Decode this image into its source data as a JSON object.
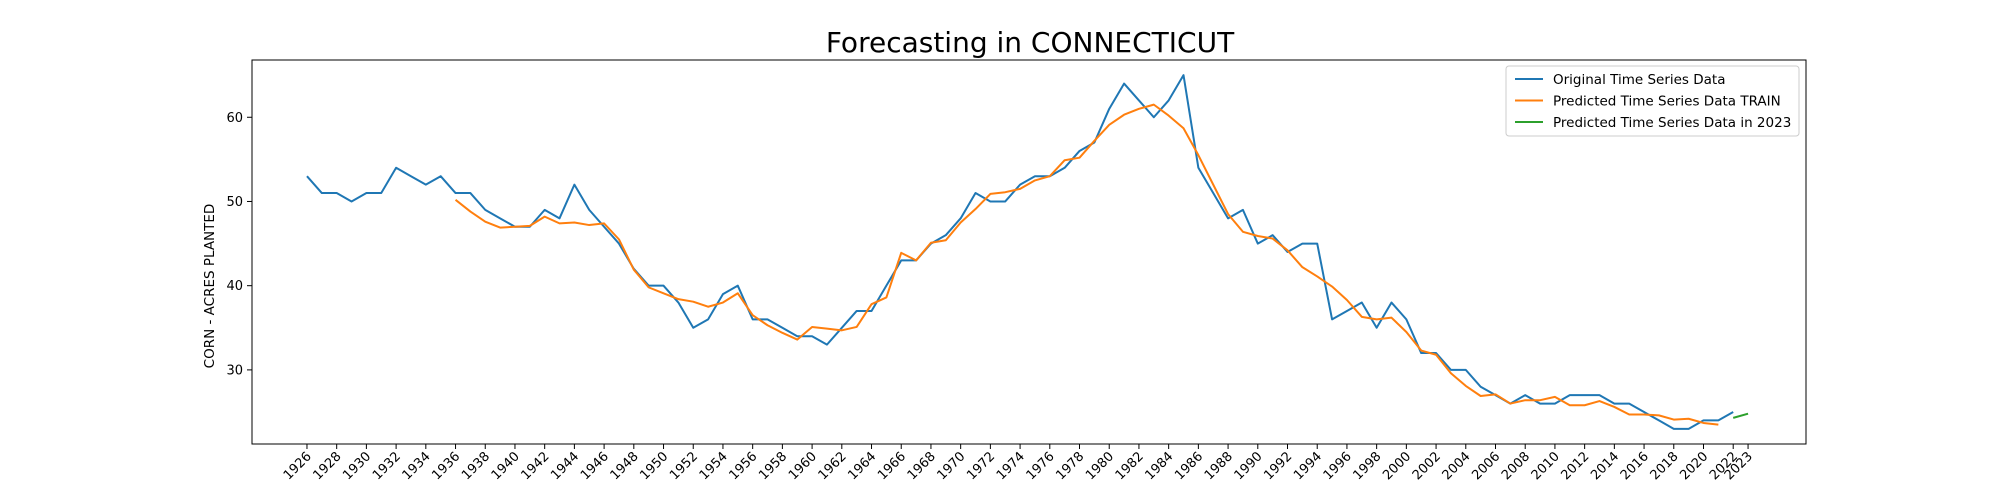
{
  "chart_data": {
    "type": "line",
    "title": "Forecasting in CONNECTICUT",
    "xlabel": "",
    "ylabel": "CORN - ACRES PLANTED",
    "xlim": [
      1922.3,
      2026.9
    ],
    "ylim": [
      21.2,
      66.8
    ],
    "y_ticks": [
      30,
      40,
      50,
      60
    ],
    "x_ticks": [
      1926,
      1928,
      1930,
      1932,
      1934,
      1936,
      1938,
      1940,
      1942,
      1944,
      1946,
      1948,
      1950,
      1952,
      1954,
      1956,
      1958,
      1960,
      1962,
      1964,
      1966,
      1968,
      1970,
      1972,
      1974,
      1976,
      1978,
      1980,
      1982,
      1984,
      1986,
      1988,
      1990,
      1992,
      1994,
      1996,
      1998,
      2000,
      2002,
      2004,
      2006,
      2008,
      2010,
      2012,
      2014,
      2016,
      2018,
      2020,
      2022,
      2023
    ],
    "grid": false,
    "legend_position": "upper right",
    "series": [
      {
        "name": "Original Time Series Data",
        "color": "#1f77b4",
        "x": [
          1926,
          1927,
          1928,
          1929,
          1930,
          1931,
          1932,
          1933,
          1934,
          1935,
          1936,
          1937,
          1938,
          1939,
          1940,
          1941,
          1942,
          1943,
          1944,
          1945,
          1946,
          1947,
          1948,
          1949,
          1950,
          1951,
          1952,
          1953,
          1954,
          1955,
          1956,
          1957,
          1958,
          1959,
          1960,
          1961,
          1962,
          1963,
          1964,
          1965,
          1966,
          1967,
          1968,
          1969,
          1970,
          1971,
          1972,
          1973,
          1974,
          1975,
          1976,
          1977,
          1978,
          1979,
          1980,
          1981,
          1982,
          1983,
          1984,
          1985,
          1986,
          1987,
          1988,
          1989,
          1990,
          1991,
          1992,
          1993,
          1994,
          1995,
          1996,
          1997,
          1998,
          1999,
          2000,
          2001,
          2002,
          2003,
          2004,
          2005,
          2006,
          2007,
          2008,
          2009,
          2010,
          2011,
          2012,
          2013,
          2014,
          2015,
          2016,
          2017,
          2018,
          2019,
          2020,
          2021,
          2022
        ],
        "y": [
          53,
          51,
          51,
          50,
          51,
          51,
          54,
          53,
          52,
          53,
          51,
          51,
          49,
          48,
          47,
          47,
          49,
          48,
          52,
          49,
          47,
          45,
          42,
          40,
          40,
          38,
          35,
          36,
          39,
          40,
          36,
          36,
          35,
          34,
          34,
          33,
          35,
          37,
          37,
          40,
          43,
          43,
          45,
          46,
          48,
          51,
          50,
          50,
          52,
          53,
          53,
          54,
          56,
          57,
          61,
          64,
          62,
          60,
          62,
          65,
          54,
          51,
          48,
          49,
          45,
          46,
          44,
          45,
          45,
          36,
          37,
          38,
          35,
          38,
          36,
          32,
          32,
          30,
          30,
          28,
          27,
          26,
          27,
          26,
          26,
          27,
          27,
          27,
          26,
          26,
          25,
          24,
          23,
          23,
          24,
          24,
          25
        ]
      },
      {
        "name": "Predicted Time Series Data TRAIN",
        "color": "#ff7f0e",
        "x": [
          1936,
          1937,
          1938,
          1939,
          1940,
          1941,
          1942,
          1943,
          1944,
          1945,
          1946,
          1947,
          1948,
          1949,
          1950,
          1951,
          1952,
          1953,
          1954,
          1955,
          1956,
          1957,
          1958,
          1959,
          1960,
          1961,
          1962,
          1963,
          1964,
          1965,
          1966,
          1967,
          1968,
          1969,
          1970,
          1971,
          1972,
          1973,
          1974,
          1975,
          1976,
          1977,
          1978,
          1979,
          1980,
          1981,
          1982,
          1983,
          1984,
          1985,
          1986,
          1987,
          1988,
          1989,
          1990,
          1991,
          1992,
          1993,
          1994,
          1995,
          1996,
          1997,
          1998,
          1999,
          2000,
          2001,
          2002,
          2003,
          2004,
          2005,
          2006,
          2007,
          2008,
          2009,
          2010,
          2011,
          2012,
          2013,
          2014,
          2015,
          2016,
          2017,
          2018,
          2019,
          2020,
          2021
        ],
        "y": [
          50.2,
          48.8,
          47.6,
          46.9,
          47.0,
          47.1,
          48.2,
          47.4,
          47.5,
          47.2,
          47.4,
          45.5,
          41.9,
          39.8,
          39.1,
          38.4,
          38.1,
          37.5,
          38.0,
          39.1,
          36.5,
          35.3,
          34.4,
          33.6,
          35.1,
          34.9,
          34.7,
          35.1,
          37.8,
          38.6,
          43.9,
          43.0,
          45.1,
          45.4,
          47.5,
          49.1,
          50.9,
          51.1,
          51.5,
          52.5,
          53.0,
          54.9,
          55.2,
          57.2,
          59.1,
          60.3,
          61.0,
          61.5,
          60.2,
          58.7,
          55.5,
          52.0,
          48.5,
          46.4,
          45.9,
          45.6,
          44.2,
          42.2,
          41.1,
          39.9,
          38.3,
          36.3,
          36.0,
          36.2,
          34.5,
          32.3,
          31.8,
          29.6,
          28.1,
          26.9,
          27.1,
          26.0,
          26.4,
          26.4,
          26.8,
          25.8,
          25.8,
          26.3,
          25.6,
          24.7,
          24.7,
          24.6,
          24.1,
          24.2,
          23.7,
          23.5
        ]
      },
      {
        "name": "Predicted Time Series Data in 2023",
        "color": "#2ca02c",
        "x": [
          2022,
          2023
        ],
        "y": [
          24.3,
          24.8
        ]
      }
    ]
  }
}
